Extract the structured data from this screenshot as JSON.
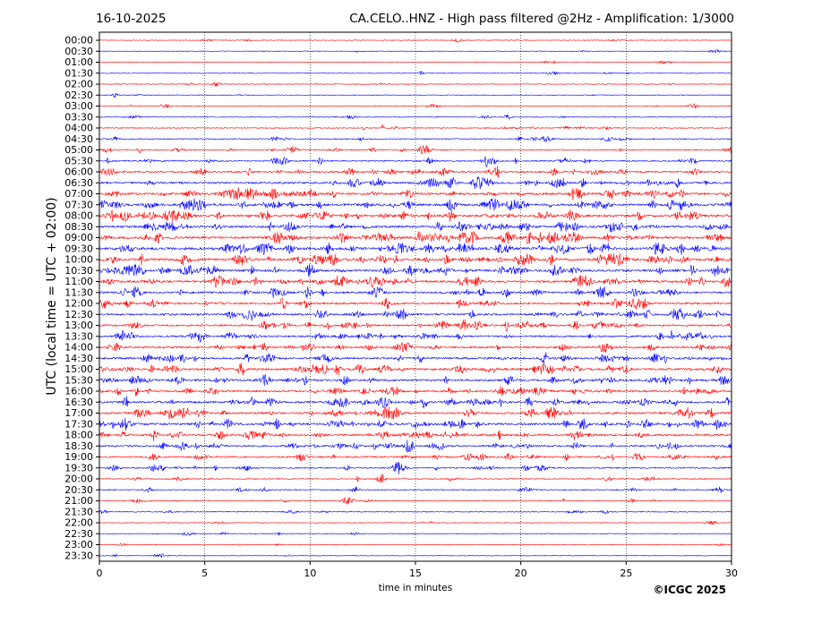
{
  "chart_data": {
    "type": "line",
    "title_left": "16-10-2025",
    "title_right": "CA.CELO..HNZ - High pass filtered @2Hz - Amplification: 1/3000",
    "xlabel": "time in minutes",
    "ylabel": "UTC (local time = UTC + 02:00)",
    "copyright": "©ICGC 2025",
    "xlim": [
      0,
      30
    ],
    "xticks": [
      0,
      5,
      10,
      15,
      20,
      25,
      30
    ],
    "grid": {
      "vertical_dotted": [
        5,
        10,
        15,
        20,
        25
      ]
    },
    "series_colors": [
      "#ff0000",
      "#0000ff"
    ],
    "rows": [
      {
        "label": "00:00",
        "activity": 0.04
      },
      {
        "label": "00:30",
        "activity": 0.03
      },
      {
        "label": "01:00",
        "activity": 0.03
      },
      {
        "label": "01:30",
        "activity": 0.05
      },
      {
        "label": "02:00",
        "activity": 0.06
      },
      {
        "label": "02:30",
        "activity": 0.05
      },
      {
        "label": "03:00",
        "activity": 0.07
      },
      {
        "label": "03:30",
        "activity": 0.09
      },
      {
        "label": "04:00",
        "activity": 0.15
      },
      {
        "label": "04:30",
        "activity": 0.18
      },
      {
        "label": "05:00",
        "activity": 0.25
      },
      {
        "label": "05:30",
        "activity": 0.35
      },
      {
        "label": "06:00",
        "activity": 0.45
      },
      {
        "label": "06:30",
        "activity": 0.6
      },
      {
        "label": "07:00",
        "activity": 0.7
      },
      {
        "label": "07:30",
        "activity": 0.75
      },
      {
        "label": "08:00",
        "activity": 0.75
      },
      {
        "label": "08:30",
        "activity": 0.7
      },
      {
        "label": "09:00",
        "activity": 0.75
      },
      {
        "label": "09:30",
        "activity": 0.85
      },
      {
        "label": "10:00",
        "activity": 0.8
      },
      {
        "label": "10:30",
        "activity": 0.75
      },
      {
        "label": "11:00",
        "activity": 0.7
      },
      {
        "label": "11:30",
        "activity": 0.6
      },
      {
        "label": "12:00",
        "activity": 0.55
      },
      {
        "label": "12:30",
        "activity": 0.6
      },
      {
        "label": "13:00",
        "activity": 0.5
      },
      {
        "label": "13:30",
        "activity": 0.5
      },
      {
        "label": "14:00",
        "activity": 0.55
      },
      {
        "label": "14:30",
        "activity": 0.6
      },
      {
        "label": "15:00",
        "activity": 0.7
      },
      {
        "label": "15:30",
        "activity": 0.6
      },
      {
        "label": "16:00",
        "activity": 0.6
      },
      {
        "label": "16:30",
        "activity": 0.65
      },
      {
        "label": "17:00",
        "activity": 0.6
      },
      {
        "label": "17:30",
        "activity": 0.7
      },
      {
        "label": "18:00",
        "activity": 0.6
      },
      {
        "label": "18:30",
        "activity": 0.5
      },
      {
        "label": "19:00",
        "activity": 0.45
      },
      {
        "label": "19:30",
        "activity": 0.3
      },
      {
        "label": "20:00",
        "activity": 0.2
      },
      {
        "label": "20:30",
        "activity": 0.2
      },
      {
        "label": "21:00",
        "activity": 0.15
      },
      {
        "label": "21:30",
        "activity": 0.12
      },
      {
        "label": "22:00",
        "activity": 0.05
      },
      {
        "label": "22:30",
        "activity": 0.05
      },
      {
        "label": "23:00",
        "activity": 0.05
      },
      {
        "label": "23:30",
        "activity": 0.04
      }
    ]
  }
}
